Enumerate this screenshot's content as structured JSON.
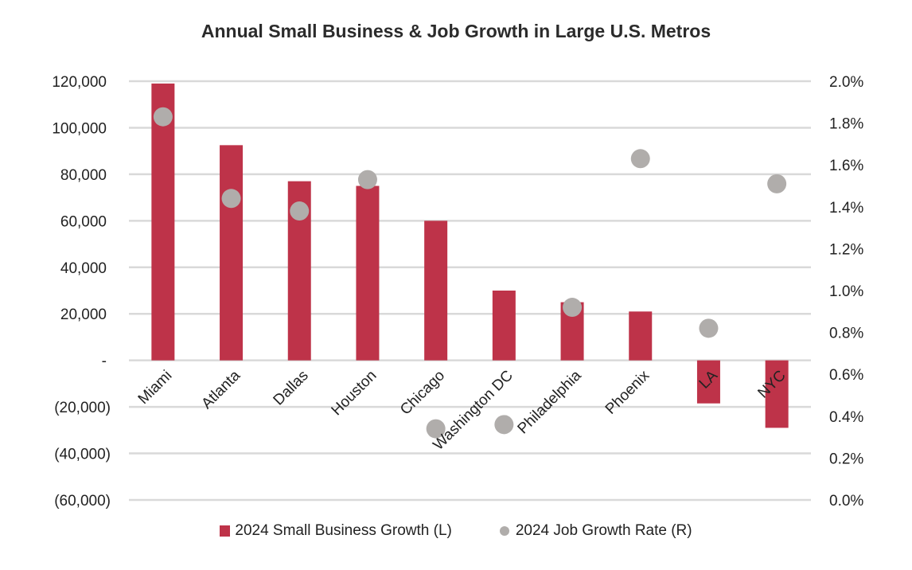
{
  "chart_data": {
    "type": "bar",
    "title": "Annual Small Business & Job Growth in Large U.S. Metros",
    "categories": [
      "Miami",
      "Atlanta",
      "Dallas",
      "Houston",
      "Chicago",
      "Washington DC",
      "Philadelphia",
      "Phoenix",
      "LA",
      "NYC"
    ],
    "series": [
      {
        "name": "2024 Small Business Growth (L)",
        "type": "bar",
        "axis": "left",
        "color": "#be3349",
        "values": [
          119000,
          92500,
          77000,
          75000,
          60000,
          30000,
          25000,
          21000,
          -18500,
          -29000
        ]
      },
      {
        "name": "2024 Job Growth Rate (R)",
        "type": "scatter",
        "axis": "right",
        "color": "#b0adab",
        "unit": "%",
        "values": [
          1.83,
          1.44,
          1.38,
          1.53,
          0.34,
          0.36,
          0.92,
          1.63,
          0.82,
          1.51
        ]
      }
    ],
    "left_axis": {
      "ylim": [
        -60000,
        120000
      ],
      "ticks": [
        120000,
        100000,
        80000,
        60000,
        40000,
        20000,
        0,
        -20000,
        -40000,
        -60000
      ],
      "tick_labels": [
        "120,000",
        "100,000",
        "80,000",
        "60,000",
        "40,000",
        "20,000",
        "-",
        "(20,000)",
        "(40,000)",
        "(60,000)"
      ]
    },
    "right_axis": {
      "ylim": [
        0.0,
        2.0
      ],
      "ticks": [
        2.0,
        1.8,
        1.6,
        1.4,
        1.2,
        1.0,
        0.8,
        0.6,
        0.4,
        0.2,
        0.0
      ],
      "tick_labels": [
        "2.0%",
        "1.8%",
        "1.6%",
        "1.4%",
        "1.2%",
        "1.0%",
        "0.8%",
        "0.6%",
        "0.4%",
        "0.2%",
        "0.0%"
      ]
    },
    "xlabel": "",
    "ylabel": "",
    "grid": true,
    "legend_position": "bottom",
    "x_label_rotation": "diagonal"
  }
}
